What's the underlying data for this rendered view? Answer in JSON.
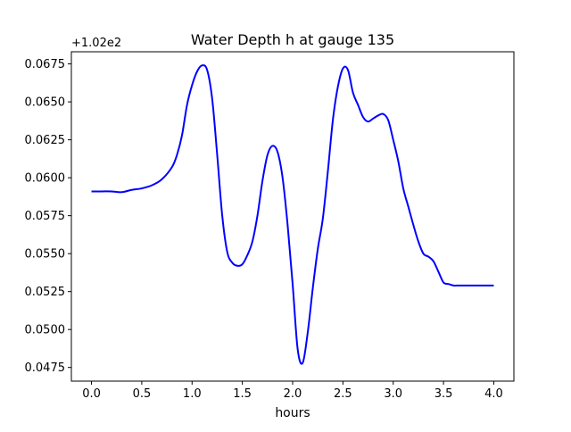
{
  "chart_data": {
    "type": "line",
    "title": "Water Depth h at gauge 135",
    "xlabel": "hours",
    "ylabel": "",
    "offset_label": "+1.02e2",
    "xlim": [
      -0.2,
      4.2
    ],
    "ylim": [
      0.0466,
      0.0683
    ],
    "xticks": [
      0.0,
      0.5,
      1.0,
      1.5,
      2.0,
      2.5,
      3.0,
      3.5,
      4.0
    ],
    "xtick_labels": [
      "0.0",
      "0.5",
      "1.0",
      "1.5",
      "2.0",
      "2.5",
      "3.0",
      "3.5",
      "4.0"
    ],
    "yticks": [
      0.0475,
      0.05,
      0.0525,
      0.055,
      0.0575,
      0.06,
      0.0625,
      0.065,
      0.0675
    ],
    "ytick_labels": [
      "0.0475",
      "0.0500",
      "0.0525",
      "0.0550",
      "0.0575",
      "0.0600",
      "0.0625",
      "0.0650",
      "0.0675"
    ],
    "grid": false,
    "series": [
      {
        "color": "#0000ff",
        "x": [
          0.0,
          0.1,
          0.2,
          0.3,
          0.4,
          0.5,
          0.6,
          0.7,
          0.8,
          0.85,
          0.9,
          0.95,
          1.0,
          1.05,
          1.1,
          1.15,
          1.2,
          1.25,
          1.3,
          1.35,
          1.4,
          1.45,
          1.5,
          1.55,
          1.6,
          1.65,
          1.7,
          1.75,
          1.8,
          1.85,
          1.9,
          1.95,
          2.0,
          2.05,
          2.1,
          2.15,
          2.2,
          2.25,
          2.3,
          2.35,
          2.4,
          2.45,
          2.5,
          2.55,
          2.6,
          2.65,
          2.7,
          2.75,
          2.8,
          2.85,
          2.9,
          2.95,
          3.0,
          3.05,
          3.1,
          3.15,
          3.2,
          3.25,
          3.3,
          3.35,
          3.4,
          3.45,
          3.5,
          3.55,
          3.6,
          3.65,
          3.7,
          3.75,
          3.8,
          3.85,
          3.9,
          3.95,
          4.0
        ],
        "y": [
          0.0591,
          0.0591,
          0.0591,
          0.05905,
          0.0592,
          0.0593,
          0.0595,
          0.0599,
          0.0607,
          0.0615,
          0.0628,
          0.0648,
          0.0661,
          0.067,
          0.0674,
          0.0671,
          0.0652,
          0.0615,
          0.0575,
          0.0551,
          0.0544,
          0.0542,
          0.0543,
          0.0549,
          0.0558,
          0.0575,
          0.0598,
          0.0615,
          0.0621,
          0.0617,
          0.06,
          0.0569,
          0.053,
          0.0487,
          0.0478,
          0.0498,
          0.0527,
          0.0553,
          0.0573,
          0.0604,
          0.0638,
          0.066,
          0.0672,
          0.0671,
          0.0656,
          0.0648,
          0.064,
          0.0637,
          0.0639,
          0.0641,
          0.0642,
          0.0638,
          0.0625,
          0.0611,
          0.0593,
          0.0581,
          0.0569,
          0.0558,
          0.055,
          0.0548,
          0.0545,
          0.0538,
          0.0531,
          0.053,
          0.0529,
          0.0529,
          0.0529,
          0.0529,
          0.0529,
          0.0529,
          0.0529,
          0.0529,
          0.0529
        ]
      }
    ]
  }
}
